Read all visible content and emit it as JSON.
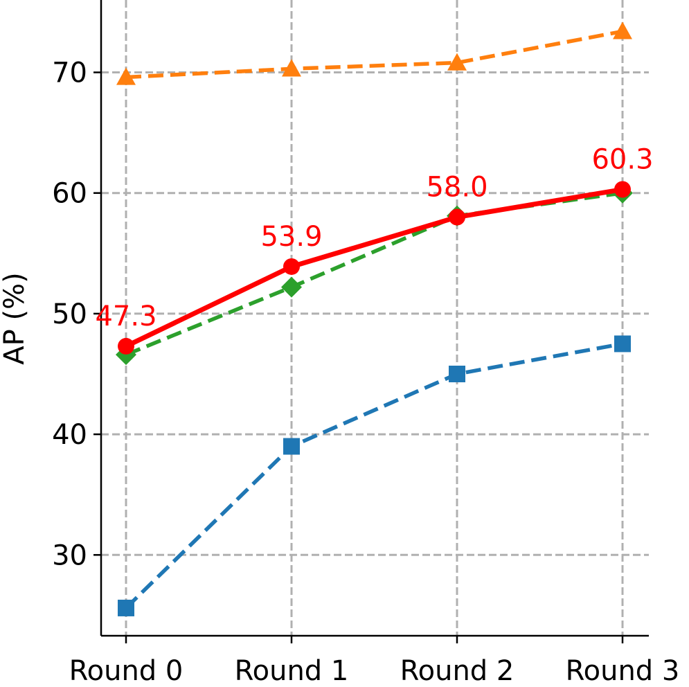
{
  "chart_data": {
    "type": "line",
    "title": "",
    "xlabel": "",
    "ylabel": "AP (%)",
    "categories": [
      "Round 0",
      "Round 1",
      "Round 2",
      "Round 3"
    ],
    "ylim": [
      23.3,
      76.0
    ],
    "yticks": [
      30,
      40,
      50,
      60,
      70
    ],
    "grid": true,
    "series": [
      {
        "values": [
          69.6,
          70.3,
          70.8,
          73.4
        ],
        "color": "#ff7f0e",
        "marker": "triangle",
        "linestyle": "dashed"
      },
      {
        "values": [
          46.6,
          52.2,
          58.1,
          60.0
        ],
        "color": "#2ca02c",
        "marker": "diamond",
        "linestyle": "dashed"
      },
      {
        "values": [
          25.6,
          39.0,
          45.0,
          47.5
        ],
        "color": "#1f77b4",
        "marker": "square",
        "linestyle": "dashed"
      },
      {
        "values": [
          47.3,
          53.9,
          58.0,
          60.3
        ],
        "color": "#ff0000",
        "marker": "circle",
        "linestyle": "solid",
        "data_labels": [
          "47.3",
          "53.9",
          "58.0",
          "60.3"
        ]
      }
    ]
  }
}
